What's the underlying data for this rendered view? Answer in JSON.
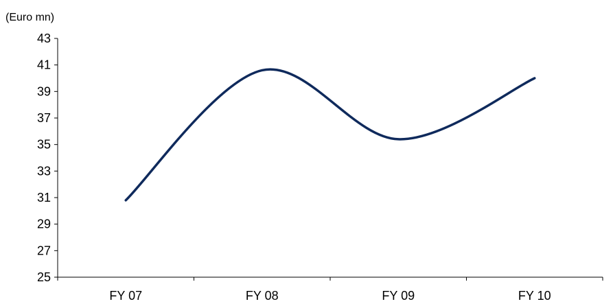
{
  "chart_data": {
    "type": "line",
    "title": "",
    "ylabel": "(Euro mn)",
    "xlabel": "",
    "categories": [
      "FY 07",
      "FY 08",
      "FY 09",
      "FY 10"
    ],
    "ylim": [
      25,
      43
    ],
    "yticks": [
      25,
      27,
      29,
      31,
      33,
      35,
      37,
      39,
      41,
      43
    ],
    "grid": false,
    "line_color": "#0f2a5c",
    "series": [
      {
        "values": [
          30.8,
          40.6,
          35.4,
          40.0
        ]
      }
    ]
  }
}
